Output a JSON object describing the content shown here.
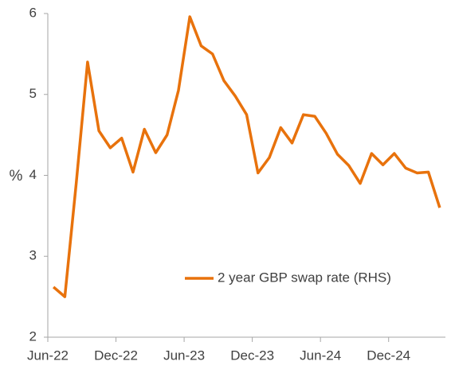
{
  "chart_data": {
    "type": "line",
    "categories": [
      "Jun-22",
      null,
      null,
      null,
      null,
      null,
      "Dec-22",
      null,
      null,
      null,
      null,
      null,
      "Jun-23",
      null,
      null,
      null,
      null,
      null,
      "Dec-23",
      null,
      null,
      null,
      null,
      null,
      "Jun-24",
      null,
      null,
      null,
      null,
      null,
      "Dec-24",
      null,
      null,
      null,
      null
    ],
    "series": [
      {
        "name": "2 year GBP swap rate (RHS)",
        "color": "#e8720c",
        "values": [
          2.62,
          2.5,
          3.9,
          5.4,
          4.55,
          4.34,
          4.46,
          4.04,
          4.57,
          4.28,
          4.5,
          5.05,
          5.96,
          5.6,
          5.5,
          5.17,
          4.98,
          4.75,
          4.03,
          4.22,
          4.59,
          4.4,
          4.75,
          4.73,
          4.52,
          4.26,
          4.12,
          3.9,
          4.27,
          4.13,
          4.27,
          4.09,
          4.03,
          4.04,
          3.6
        ]
      }
    ],
    "y_label": "%",
    "ylim": [
      2,
      6
    ],
    "yticks": [
      2,
      3,
      4,
      5,
      6
    ],
    "grid": false,
    "legend": "lower right"
  }
}
